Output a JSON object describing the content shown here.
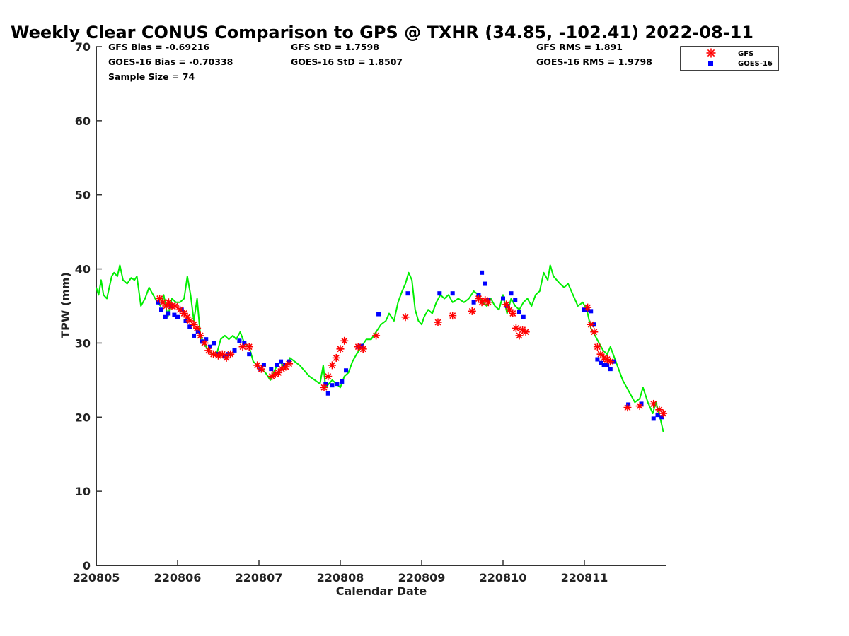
{
  "chart_data": {
    "type": "scatter",
    "title": "Weekly Clear CONUS Comparison to GPS @ TXHR (34.85, -102.41) 2022-08-11",
    "xlabel": "Calendar Date",
    "ylabel": "TPW (mm)",
    "xlim": [
      220805,
      220812
    ],
    "ylim": [
      0,
      70
    ],
    "xticks": [
      220805,
      220806,
      220807,
      220808,
      220809,
      220810,
      220811
    ],
    "xtick_labels": [
      "220805",
      "220806",
      "220807",
      "220808",
      "220809",
      "220810",
      "220811"
    ],
    "yticks": [
      0,
      10,
      20,
      30,
      40,
      50,
      60,
      70
    ],
    "ytick_labels": [
      "0",
      "10",
      "20",
      "30",
      "40",
      "50",
      "60",
      "70"
    ],
    "grid": false,
    "legend_position": "top-right outside",
    "stats": {
      "gfs_bias": "GFS Bias = -0.69216",
      "goes_bias": "GOES-16 Bias = -0.70338",
      "sample_size": "Sample Size = 74",
      "gfs_std": "GFS StD = 1.7598",
      "goes_std": "GOES-16 StD = 1.8507",
      "gfs_rms": "GFS RMS = 1.891",
      "goes_rms": "GOES-16 RMS = 1.9798"
    },
    "legend": [
      {
        "label": "GFS",
        "marker": "asterisk",
        "color": "#ff0000"
      },
      {
        "label": "GOES-16",
        "marker": "square",
        "color": "#0000ff"
      }
    ],
    "gps_line": {
      "color": "#00ee00",
      "x": [
        220805.0,
        220805.03,
        220805.06,
        220805.09,
        220805.13,
        220805.19,
        220805.22,
        220805.26,
        220805.29,
        220805.33,
        220805.38,
        220805.43,
        220805.47,
        220805.5,
        220805.55,
        220805.6,
        220805.65,
        220805.7,
        220805.75,
        220805.79,
        220805.83,
        220805.88,
        220805.93,
        220805.98,
        220806.03,
        220806.08,
        220806.12,
        220806.16,
        220806.2,
        220806.24,
        220806.28,
        220806.32,
        220806.38,
        220806.43,
        220806.48,
        220806.53,
        220806.58,
        220806.63,
        220806.68,
        220806.72,
        220806.77,
        220806.82,
        220806.88,
        220806.93,
        220806.98,
        220807.03,
        220807.08,
        220807.14,
        220807.2,
        220807.26,
        220807.32,
        220807.38,
        220807.5,
        220807.62,
        220807.75,
        220807.79,
        220807.82,
        220807.86,
        220807.9,
        220807.95,
        220808.0,
        220808.05,
        220808.1,
        220808.15,
        220808.2,
        220808.26,
        220808.32,
        220808.38,
        220808.44,
        220808.5,
        220808.56,
        220808.6,
        220808.66,
        220808.71,
        220808.76,
        220808.8,
        220808.84,
        220808.88,
        220808.92,
        220808.96,
        220809.0,
        220809.03,
        220809.08,
        220809.13,
        220809.18,
        220809.23,
        220809.28,
        220809.33,
        220809.38,
        220809.45,
        220809.52,
        220809.58,
        220809.64,
        220809.7,
        220809.75,
        220809.8,
        220809.85,
        220809.9,
        220809.95,
        220810.0,
        220810.05,
        220810.1,
        220810.15,
        220810.2,
        220810.25,
        220810.3,
        220810.35,
        220810.4,
        220810.45,
        220810.5,
        220810.55,
        220810.58,
        220810.62,
        220810.66,
        220810.7,
        220810.75,
        220810.8,
        220810.86,
        220810.92,
        220810.98,
        220811.03,
        220811.08,
        220811.13,
        220811.18,
        220811.23,
        220811.28,
        220811.32,
        220811.37,
        220811.42,
        220811.47,
        220811.52,
        220811.57,
        220811.62,
        220811.68,
        220811.72,
        220811.78,
        220811.84,
        220811.88,
        220811.93,
        220811.97
      ],
      "y": [
        37.5,
        36.5,
        38.5,
        36.5,
        36.0,
        39.0,
        39.5,
        39.0,
        40.5,
        38.5,
        38.0,
        38.8,
        38.5,
        39.0,
        35.0,
        36.0,
        37.5,
        36.5,
        35.5,
        35.0,
        36.5,
        33.5,
        36.0,
        35.5,
        35.5,
        36.0,
        39.0,
        36.5,
        33.0,
        36.0,
        31.0,
        30.0,
        29.0,
        28.5,
        28.5,
        30.5,
        31.0,
        30.5,
        31.0,
        30.5,
        31.5,
        30.0,
        29.5,
        27.5,
        27.0,
        26.5,
        26.0,
        25.0,
        26.5,
        27.5,
        26.5,
        28.0,
        27.0,
        25.5,
        24.5,
        27.0,
        24.0,
        24.5,
        25.0,
        24.5,
        24.0,
        25.5,
        26.0,
        27.5,
        28.5,
        29.5,
        30.5,
        30.5,
        31.5,
        32.5,
        33.0,
        34.0,
        33.0,
        35.5,
        37.0,
        38.0,
        39.5,
        38.5,
        34.5,
        33.0,
        32.5,
        33.5,
        34.5,
        34.0,
        35.5,
        36.5,
        36.0,
        36.5,
        35.5,
        36.0,
        35.5,
        36.0,
        37.0,
        36.5,
        35.5,
        35.0,
        36.0,
        35.0,
        34.5,
        36.5,
        34.0,
        36.0,
        35.0,
        34.5,
        35.5,
        36.0,
        35.0,
        36.5,
        37.0,
        39.5,
        38.5,
        40.5,
        39.0,
        38.5,
        38.0,
        37.5,
        38.0,
        36.5,
        35.0,
        35.5,
        34.5,
        32.0,
        31.0,
        30.0,
        29.0,
        28.5,
        29.5,
        28.0,
        26.5,
        25.0,
        24.0,
        23.0,
        22.0,
        22.5,
        24.0,
        22.0,
        20.5,
        22.0,
        20.0,
        18.0
      ]
    },
    "series": [
      {
        "name": "GFS",
        "x": [
          220805.78,
          220805.82,
          220805.86,
          220805.89,
          220805.93,
          220805.97,
          220806.03,
          220806.08,
          220806.12,
          220806.15,
          220806.2,
          220806.24,
          220806.28,
          220806.33,
          220806.38,
          220806.44,
          220806.5,
          220806.55,
          220806.6,
          220806.65,
          220806.8,
          220806.88,
          220806.98,
          220807.03,
          220807.16,
          220807.2,
          220807.24,
          220807.28,
          220807.33,
          220807.37,
          220807.8,
          220807.85,
          220807.9,
          220807.95,
          220808.0,
          220808.05,
          220808.22,
          220808.28,
          220808.44,
          220808.8,
          220809.2,
          220809.38,
          220809.62,
          220809.7,
          220809.74,
          220809.78,
          220809.82,
          220810.04,
          220810.08,
          220810.12,
          220810.16,
          220810.2,
          220810.24,
          220810.28,
          220811.04,
          220811.08,
          220811.12,
          220811.16,
          220811.2,
          220811.24,
          220811.28,
          220811.32,
          220811.53,
          220811.68,
          220811.85,
          220811.92,
          220811.97
        ],
        "y": [
          36.0,
          35.5,
          35.0,
          35.5,
          35.0,
          35.0,
          34.5,
          34.0,
          33.5,
          33.0,
          32.5,
          32.0,
          31.0,
          30.0,
          29.0,
          28.5,
          28.3,
          28.5,
          28.0,
          28.5,
          29.5,
          29.5,
          27.0,
          26.5,
          25.5,
          25.8,
          26.0,
          26.5,
          26.8,
          27.2,
          24.0,
          25.5,
          27.0,
          28.0,
          29.2,
          30.3,
          29.5,
          29.2,
          31.0,
          33.5,
          32.8,
          33.7,
          34.3,
          36.0,
          35.5,
          35.8,
          35.5,
          35.2,
          34.5,
          34.0,
          32.0,
          31.0,
          31.8,
          31.5,
          34.8,
          32.5,
          31.5,
          29.5,
          28.5,
          28.0,
          27.8,
          27.5,
          21.3,
          21.5,
          21.8,
          21.0,
          20.5
        ]
      },
      {
        "name": "GOES-16",
        "x": [
          220805.76,
          220805.8,
          220805.85,
          220805.88,
          220805.92,
          220805.96,
          220806.0,
          220806.05,
          220806.1,
          220806.15,
          220806.2,
          220806.25,
          220806.3,
          220806.35,
          220806.4,
          220806.45,
          220806.5,
          220806.58,
          220806.62,
          220806.7,
          220806.76,
          220806.82,
          220806.88,
          220807.02,
          220807.06,
          220807.15,
          220807.22,
          220807.27,
          220807.32,
          220807.37,
          220807.82,
          220807.85,
          220807.9,
          220807.96,
          220808.02,
          220808.07,
          220808.22,
          220808.26,
          220808.47,
          220808.83,
          220809.22,
          220809.38,
          220809.64,
          220809.7,
          220809.74,
          220809.78,
          220809.82,
          220810.0,
          220810.05,
          220810.1,
          220810.15,
          220810.2,
          220810.25,
          220811.0,
          220811.04,
          220811.08,
          220811.12,
          220811.16,
          220811.2,
          220811.24,
          220811.28,
          220811.32,
          220811.36,
          220811.54,
          220811.7,
          220811.85,
          220811.9,
          220811.95
        ],
        "y": [
          35.5,
          34.5,
          33.5,
          34.0,
          35.0,
          33.8,
          33.5,
          34.5,
          33.0,
          32.2,
          31.0,
          31.5,
          30.2,
          30.5,
          29.5,
          30.0,
          28.5,
          28.2,
          28.5,
          29.0,
          30.3,
          30.0,
          28.5,
          26.5,
          27.0,
          26.5,
          27.0,
          27.5,
          27.0,
          27.5,
          24.5,
          23.2,
          24.3,
          24.5,
          24.8,
          26.3,
          29.5,
          29.6,
          33.9,
          36.7,
          36.7,
          36.7,
          35.5,
          36.5,
          39.5,
          38.0,
          35.8,
          36.0,
          35.0,
          36.7,
          35.8,
          34.2,
          33.5,
          34.5,
          34.5,
          34.3,
          32.5,
          27.8,
          27.3,
          27.0,
          27.0,
          26.5,
          27.5,
          21.7,
          21.8,
          19.8,
          20.3,
          20.0
        ]
      }
    ]
  }
}
